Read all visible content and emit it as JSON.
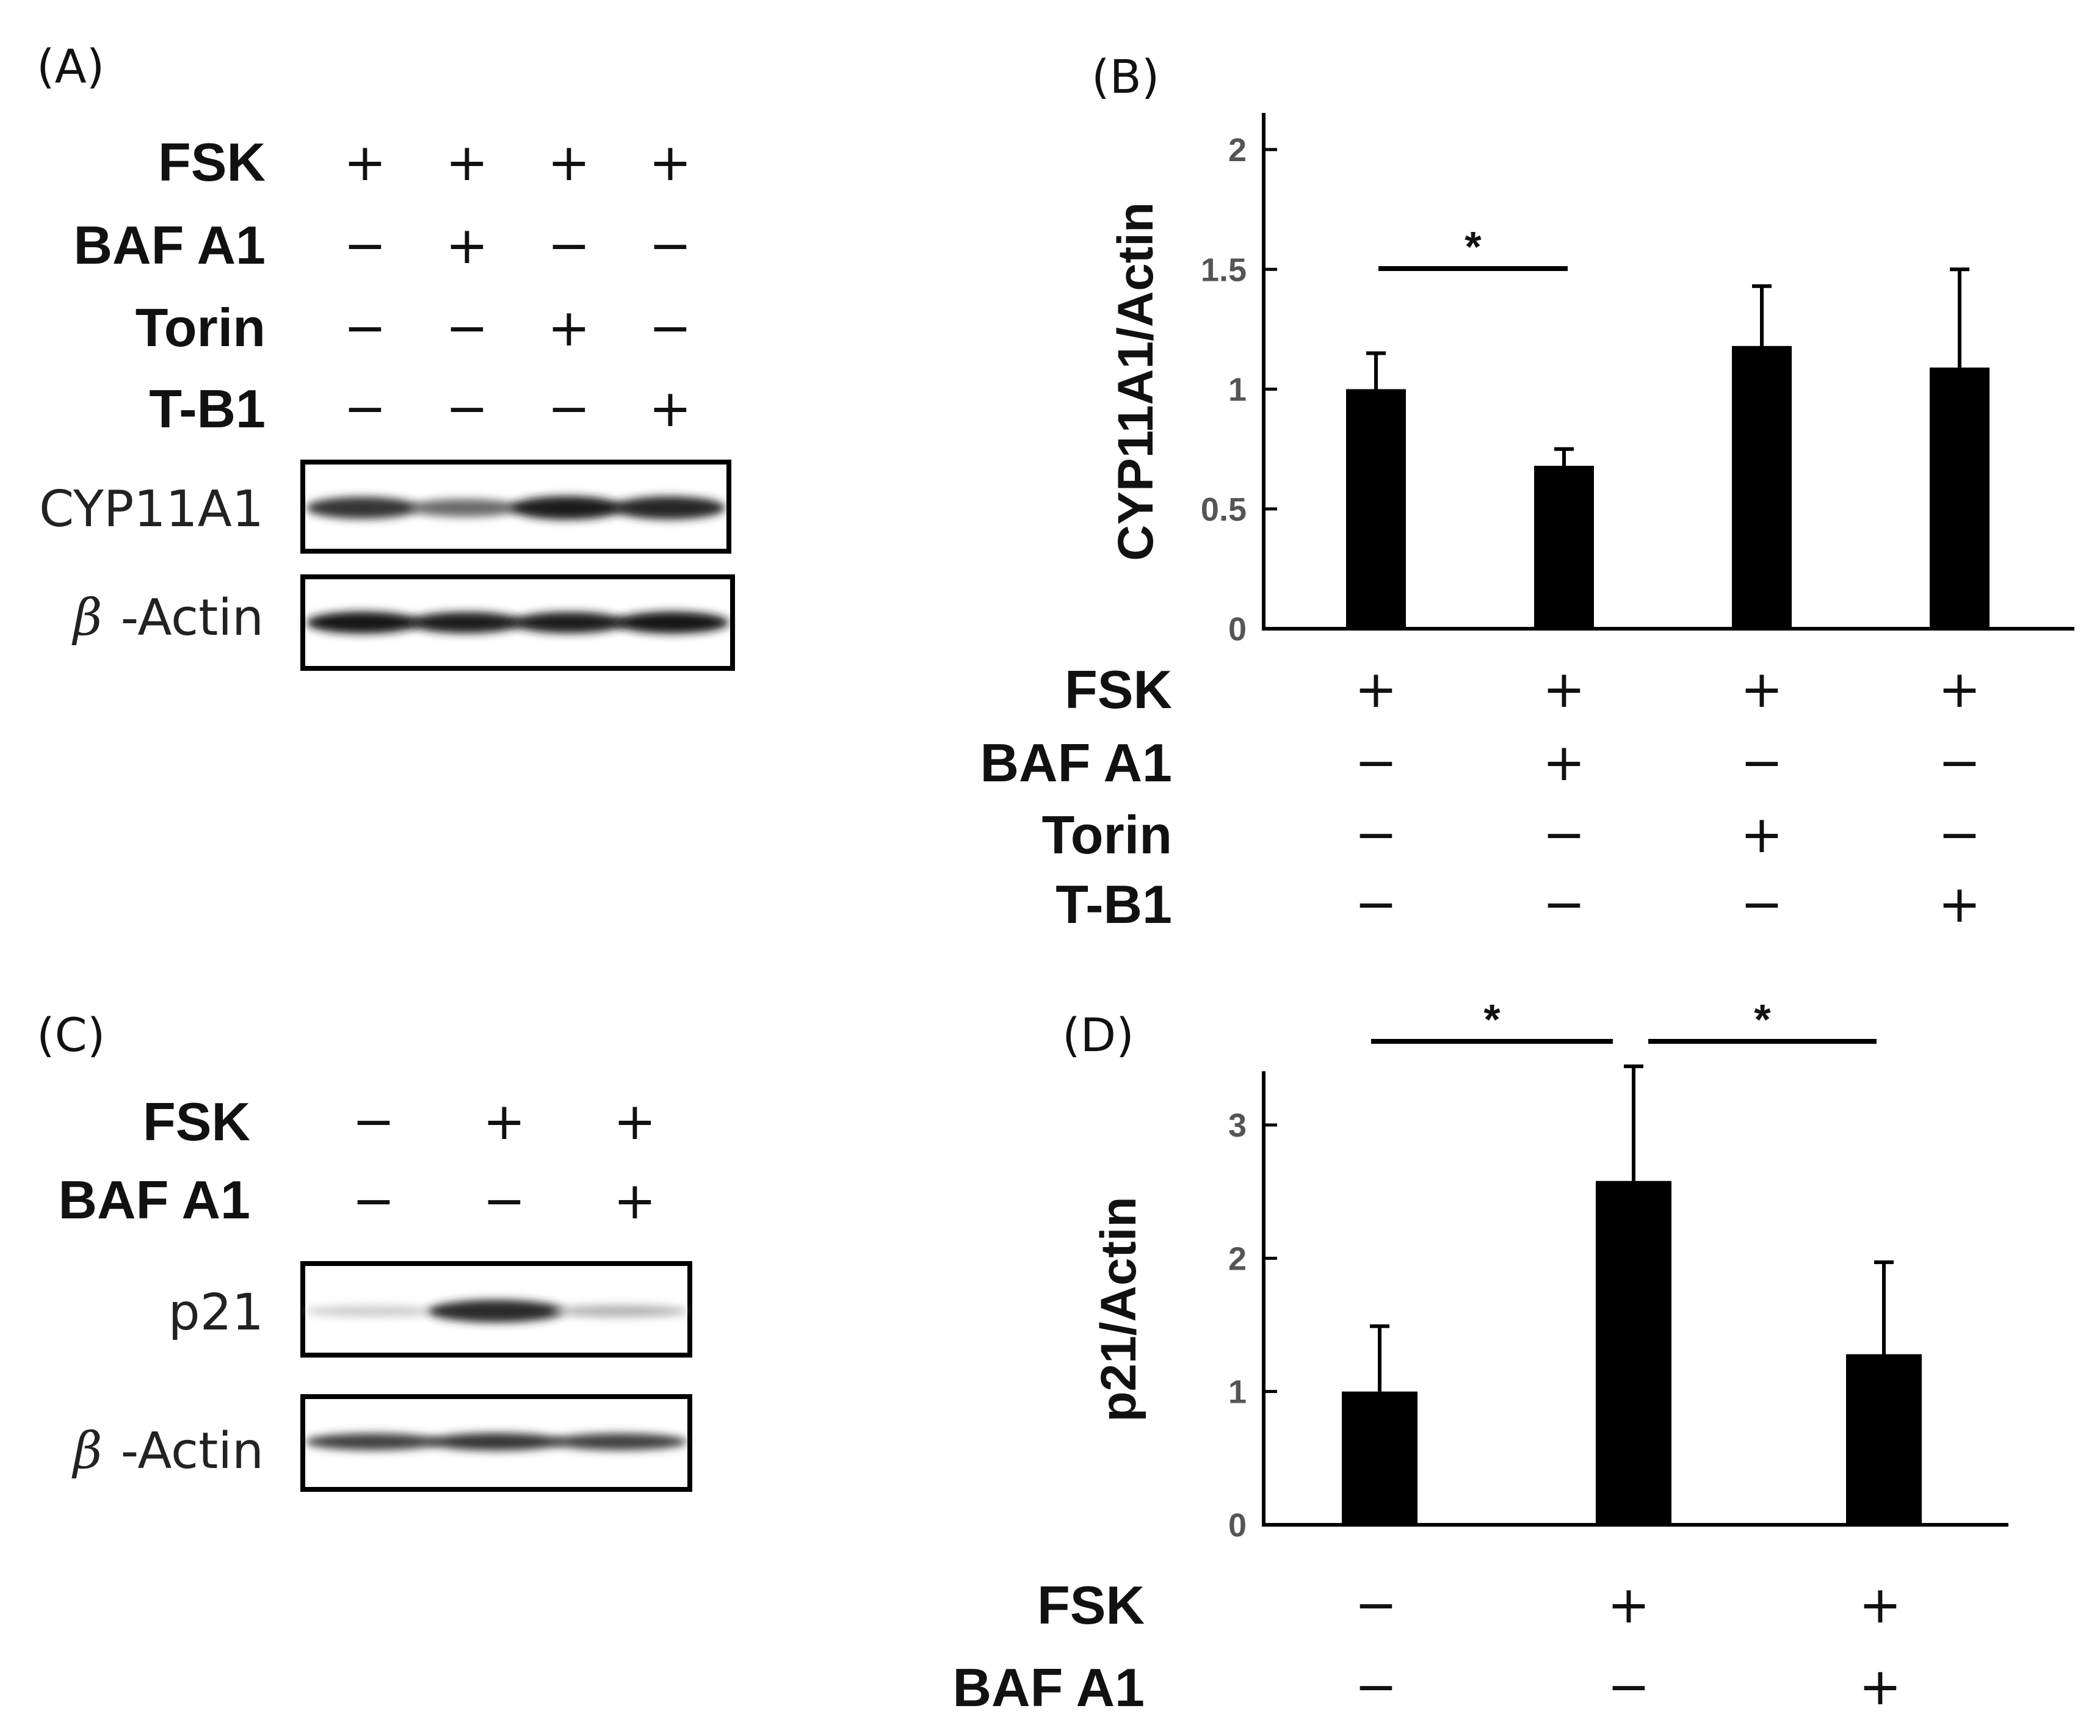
{
  "panels": {
    "A": {
      "label": "(A)",
      "conditions": [
        {
          "name": "FSK",
          "values": [
            "+",
            "+",
            "+",
            "+"
          ]
        },
        {
          "name": "BAF A1",
          "values": [
            "−",
            "+",
            "−",
            "−"
          ]
        },
        {
          "name": "Torin",
          "values": [
            "−",
            "−",
            "+",
            "−"
          ]
        },
        {
          "name": "T-B1",
          "values": [
            "−",
            "−",
            "−",
            "+"
          ]
        }
      ],
      "blots": [
        {
          "label": "CYP11A1",
          "beta_prefix": "",
          "intensities": [
            0.85,
            0.6,
            0.95,
            0.92
          ]
        },
        {
          "label": "-Actin",
          "beta_prefix": "β",
          "intensities": [
            1.0,
            0.95,
            0.95,
            1.0
          ]
        }
      ]
    },
    "B": {
      "label": "(B)"
    },
    "C": {
      "label": "(C)",
      "conditions": [
        {
          "name": "FSK",
          "values": [
            "−",
            "+",
            "+"
          ]
        },
        {
          "name": "BAF A1",
          "values": [
            "−",
            "−",
            "+"
          ]
        }
      ],
      "blots": [
        {
          "label": "p21",
          "beta_prefix": "",
          "intensities": [
            0.15,
            0.9,
            0.25
          ]
        },
        {
          "label": "-Actin",
          "beta_prefix": "β",
          "intensities": [
            0.8,
            0.85,
            0.8
          ]
        }
      ]
    },
    "D": {
      "label": "(D)"
    }
  },
  "chart_data": [
    {
      "id": "B",
      "type": "bar",
      "title": "",
      "xlabel": "",
      "ylabel": "CYP11A1/Actin",
      "ylim": [
        0,
        2.1
      ],
      "yticks": [
        0,
        0.5,
        1,
        1.5,
        2
      ],
      "ytick_labels": [
        "0",
        "0.5",
        "1",
        "1.5",
        "2"
      ],
      "values": [
        1.0,
        0.68,
        1.18,
        1.09
      ],
      "errors": [
        0.15,
        0.07,
        0.25,
        0.41
      ],
      "significance": [
        {
          "from": 0,
          "to": 1,
          "label": "*"
        }
      ],
      "conditions": [
        {
          "name": "FSK",
          "values": [
            "+",
            "+",
            "+",
            "+"
          ]
        },
        {
          "name": "BAF A1",
          "values": [
            "−",
            "+",
            "−",
            "−"
          ]
        },
        {
          "name": "Torin",
          "values": [
            "−",
            "−",
            "+",
            "−"
          ]
        },
        {
          "name": "T-B1",
          "values": [
            "−",
            "−",
            "−",
            "+"
          ]
        }
      ]
    },
    {
      "id": "D",
      "type": "bar",
      "title": "",
      "xlabel": "",
      "ylabel": "p21/Actin",
      "ylim": [
        0,
        3.4
      ],
      "yticks": [
        0,
        1,
        2,
        3
      ],
      "ytick_labels": [
        "0",
        "1",
        "2",
        "3"
      ],
      "values": [
        1.0,
        2.58,
        1.28
      ],
      "errors": [
        0.49,
        0.86,
        0.69
      ],
      "significance": [
        {
          "from": 0,
          "to": 1,
          "label": "*"
        },
        {
          "from": 1,
          "to": 2,
          "label": "*"
        }
      ],
      "conditions": [
        {
          "name": "FSK",
          "values": [
            "−",
            "+",
            "+"
          ]
        },
        {
          "name": "BAF A1",
          "values": [
            "−",
            "−",
            "+"
          ]
        }
      ]
    }
  ]
}
